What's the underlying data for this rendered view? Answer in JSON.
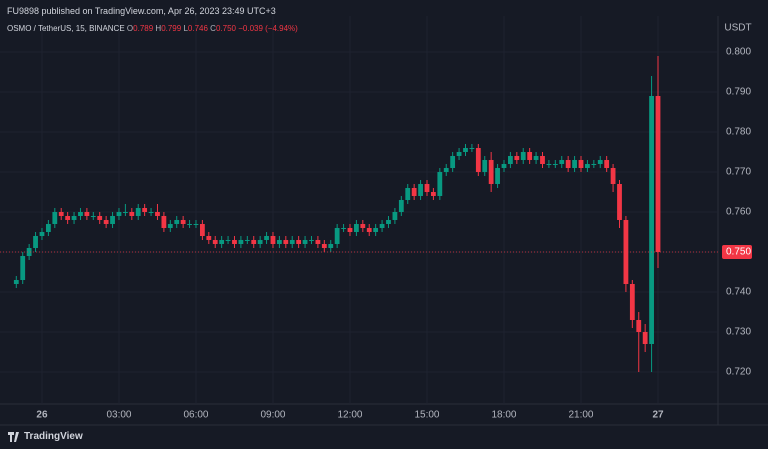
{
  "header": {
    "published": "FU9898 published on TradingView.com, Apr 26, 2023 23:49 UTC+3"
  },
  "legend": {
    "symbol": "OSMO / TetherUS, 15, BINANCE",
    "ohlc": [
      {
        "key": "O",
        "value": "0.789"
      },
      {
        "key": "H",
        "value": "0.799"
      },
      {
        "key": "L",
        "value": "0.746"
      },
      {
        "key": "C",
        "value": "0.750"
      }
    ],
    "change": "−0.039 (−4.94%)"
  },
  "footer": {
    "brand": "TradingView"
  },
  "chart_data": {
    "type": "candlestick",
    "currency": "USDT",
    "up_color": "#089981",
    "down_color": "#f23645",
    "grid": true,
    "categories": [
      null,
      null,
      null,
      null,
      "26",
      null,
      null,
      null,
      null,
      null,
      null,
      null,
      null,
      null,
      null,
      null,
      "03:00",
      null,
      null,
      null,
      null,
      null,
      null,
      null,
      null,
      null,
      null,
      null,
      "06:00",
      null,
      null,
      null,
      null,
      null,
      null,
      null,
      null,
      null,
      null,
      null,
      "09:00",
      null,
      null,
      null,
      null,
      null,
      null,
      null,
      null,
      null,
      null,
      null,
      "12:00",
      null,
      null,
      null,
      null,
      null,
      null,
      null,
      null,
      null,
      null,
      null,
      "15:00",
      null,
      null,
      null,
      null,
      null,
      null,
      null,
      null,
      null,
      null,
      null,
      "18:00",
      null,
      null,
      null,
      null,
      null,
      null,
      null,
      null,
      null,
      null,
      null,
      "21:00",
      null,
      null,
      null,
      null,
      null,
      null,
      null,
      null,
      null,
      null,
      null,
      "27"
    ],
    "open": [
      0.742,
      0.743,
      0.749,
      0.751,
      0.754,
      0.755,
      0.757,
      0.76,
      0.759,
      0.758,
      0.759,
      0.76,
      0.759,
      0.759,
      0.758,
      0.757,
      0.759,
      0.76,
      0.76,
      0.759,
      0.761,
      0.76,
      0.76,
      0.759,
      0.756,
      0.757,
      0.758,
      0.757,
      0.757,
      0.757,
      0.754,
      0.753,
      0.752,
      0.753,
      0.753,
      0.752,
      0.753,
      0.753,
      0.752,
      0.753,
      0.754,
      0.752,
      0.753,
      0.752,
      0.753,
      0.752,
      0.753,
      0.753,
      0.752,
      0.751,
      0.752,
      0.756,
      0.756,
      0.755,
      0.757,
      0.756,
      0.755,
      0.756,
      0.757,
      0.758,
      0.76,
      0.763,
      0.766,
      0.764,
      0.767,
      0.765,
      0.764,
      0.77,
      0.771,
      0.774,
      0.775,
      0.776,
      0.776,
      0.77,
      0.773,
      0.767,
      0.771,
      0.772,
      0.774,
      0.773,
      0.775,
      0.773,
      0.774,
      0.772,
      0.772,
      0.772,
      0.773,
      0.771,
      0.773,
      0.771,
      0.772,
      0.772,
      0.773,
      0.771,
      0.767,
      0.758,
      0.742,
      0.733,
      0.73,
      0.727,
      0.789
    ],
    "high": [
      0.744,
      0.75,
      0.752,
      0.755,
      0.756,
      0.758,
      0.761,
      0.761,
      0.76,
      0.76,
      0.761,
      0.761,
      0.76,
      0.76,
      0.759,
      0.76,
      0.761,
      0.762,
      0.761,
      0.762,
      0.762,
      0.761,
      0.762,
      0.76,
      0.758,
      0.759,
      0.759,
      0.758,
      0.758,
      0.758,
      0.755,
      0.754,
      0.754,
      0.754,
      0.754,
      0.754,
      0.754,
      0.754,
      0.754,
      0.755,
      0.755,
      0.754,
      0.754,
      0.754,
      0.754,
      0.754,
      0.754,
      0.754,
      0.753,
      0.753,
      0.757,
      0.757,
      0.757,
      0.758,
      0.758,
      0.757,
      0.757,
      0.758,
      0.759,
      0.761,
      0.764,
      0.767,
      0.767,
      0.768,
      0.768,
      0.766,
      0.771,
      0.772,
      0.775,
      0.776,
      0.777,
      0.777,
      0.777,
      0.774,
      0.775,
      0.772,
      0.773,
      0.775,
      0.775,
      0.776,
      0.776,
      0.775,
      0.775,
      0.773,
      0.773,
      0.774,
      0.774,
      0.774,
      0.774,
      0.773,
      0.773,
      0.774,
      0.774,
      0.772,
      0.768,
      0.759,
      0.743,
      0.735,
      0.732,
      0.794,
      0.799
    ],
    "low": [
      0.741,
      0.742,
      0.748,
      0.75,
      0.753,
      0.754,
      0.756,
      0.758,
      0.757,
      0.757,
      0.758,
      0.758,
      0.758,
      0.757,
      0.756,
      0.756,
      0.758,
      0.759,
      0.758,
      0.758,
      0.759,
      0.759,
      0.758,
      0.755,
      0.755,
      0.756,
      0.756,
      0.756,
      0.756,
      0.753,
      0.752,
      0.751,
      0.751,
      0.752,
      0.751,
      0.751,
      0.752,
      0.751,
      0.751,
      0.752,
      0.751,
      0.751,
      0.751,
      0.751,
      0.751,
      0.751,
      0.752,
      0.751,
      0.75,
      0.75,
      0.751,
      0.755,
      0.754,
      0.754,
      0.755,
      0.754,
      0.754,
      0.755,
      0.756,
      0.757,
      0.759,
      0.762,
      0.763,
      0.763,
      0.764,
      0.763,
      0.763,
      0.769,
      0.77,
      0.773,
      0.774,
      0.775,
      0.769,
      0.769,
      0.765,
      0.766,
      0.77,
      0.771,
      0.772,
      0.772,
      0.772,
      0.772,
      0.771,
      0.771,
      0.771,
      0.771,
      0.77,
      0.77,
      0.77,
      0.77,
      0.771,
      0.771,
      0.77,
      0.765,
      0.756,
      0.74,
      0.731,
      0.72,
      0.725,
      0.72,
      0.746
    ],
    "close": [
      0.743,
      0.749,
      0.751,
      0.754,
      0.755,
      0.757,
      0.76,
      0.759,
      0.758,
      0.759,
      0.76,
      0.759,
      0.759,
      0.758,
      0.757,
      0.759,
      0.76,
      0.76,
      0.759,
      0.761,
      0.76,
      0.76,
      0.759,
      0.756,
      0.757,
      0.758,
      0.757,
      0.757,
      0.757,
      0.754,
      0.753,
      0.752,
      0.753,
      0.753,
      0.752,
      0.753,
      0.753,
      0.752,
      0.753,
      0.754,
      0.752,
      0.753,
      0.752,
      0.753,
      0.752,
      0.753,
      0.753,
      0.752,
      0.751,
      0.752,
      0.756,
      0.756,
      0.755,
      0.757,
      0.756,
      0.755,
      0.756,
      0.757,
      0.758,
      0.76,
      0.763,
      0.766,
      0.764,
      0.767,
      0.765,
      0.764,
      0.77,
      0.771,
      0.774,
      0.775,
      0.776,
      0.776,
      0.77,
      0.773,
      0.767,
      0.771,
      0.772,
      0.774,
      0.773,
      0.775,
      0.773,
      0.774,
      0.772,
      0.772,
      0.772,
      0.773,
      0.771,
      0.773,
      0.771,
      0.772,
      0.772,
      0.773,
      0.771,
      0.767,
      0.758,
      0.742,
      0.733,
      0.73,
      0.727,
      0.789,
      0.75
    ],
    "ylim": [
      0.712,
      0.803
    ],
    "yticks": [
      {
        "value": 0.72,
        "label": "0.720"
      },
      {
        "value": 0.73,
        "label": "0.730"
      },
      {
        "value": 0.74,
        "label": "0.740"
      },
      {
        "value": 0.75,
        "label": "0.750"
      },
      {
        "value": 0.76,
        "label": "0.760"
      },
      {
        "value": 0.77,
        "label": "0.770"
      },
      {
        "value": 0.78,
        "label": "0.780"
      },
      {
        "value": 0.79,
        "label": "0.790"
      },
      {
        "value": 0.8,
        "label": "0.800"
      }
    ],
    "last_price": {
      "value": 0.75,
      "label": "0.750"
    }
  }
}
